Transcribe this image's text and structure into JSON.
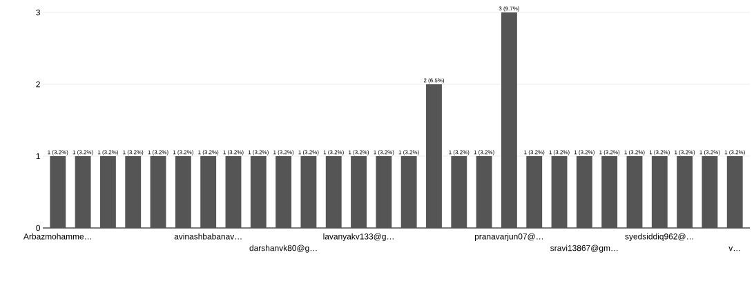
{
  "chart_data": {
    "type": "bar",
    "categories": [
      "Arbazmohamme…",
      null,
      null,
      null,
      null,
      null,
      "avinashbabanav…",
      null,
      null,
      "darshanvk80@g…",
      null,
      null,
      "lavanyakv133@g…",
      null,
      null,
      null,
      null,
      null,
      "pranavarjun07@…",
      null,
      null,
      "sravi13867@gm…",
      null,
      null,
      "syedsiddiq962@…",
      null,
      null,
      "v…"
    ],
    "values": [
      1,
      1,
      1,
      1,
      1,
      1,
      1,
      1,
      1,
      1,
      1,
      1,
      1,
      1,
      1,
      2,
      1,
      1,
      3,
      1,
      1,
      1,
      1,
      1,
      1,
      1,
      1,
      1
    ],
    "value_labels": [
      "1 (3.2%)",
      "1 (3.2%)",
      "1 (3.2%)",
      "1 (3.2%)",
      "1 (3.2%)",
      "1 (3.2%)",
      "1 (3.2%)",
      "1 (3.2%)",
      "1 (3.2%)",
      "1 (3.2%)",
      "1 (3.2%)",
      "1 (3.2%)",
      "1 (3.2%)",
      "1 (3.2%)",
      "1 (3.2%)",
      "2 (6.5%)",
      "1 (3.2%)",
      "1 (3.2%)",
      "3 (9.7%)",
      "1 (3.2%)",
      "1 (3.2%)",
      "1 (3.2%)",
      "1 (3.2%)",
      "1 (3.2%)",
      "1 (3.2%)",
      "1 (3.2%)",
      "1 (3.2%)",
      "1 (3.2%)"
    ],
    "color": "#555555",
    "ylim": [
      0,
      3
    ],
    "yticks": [
      0,
      1,
      2,
      3
    ],
    "grid": "y"
  }
}
